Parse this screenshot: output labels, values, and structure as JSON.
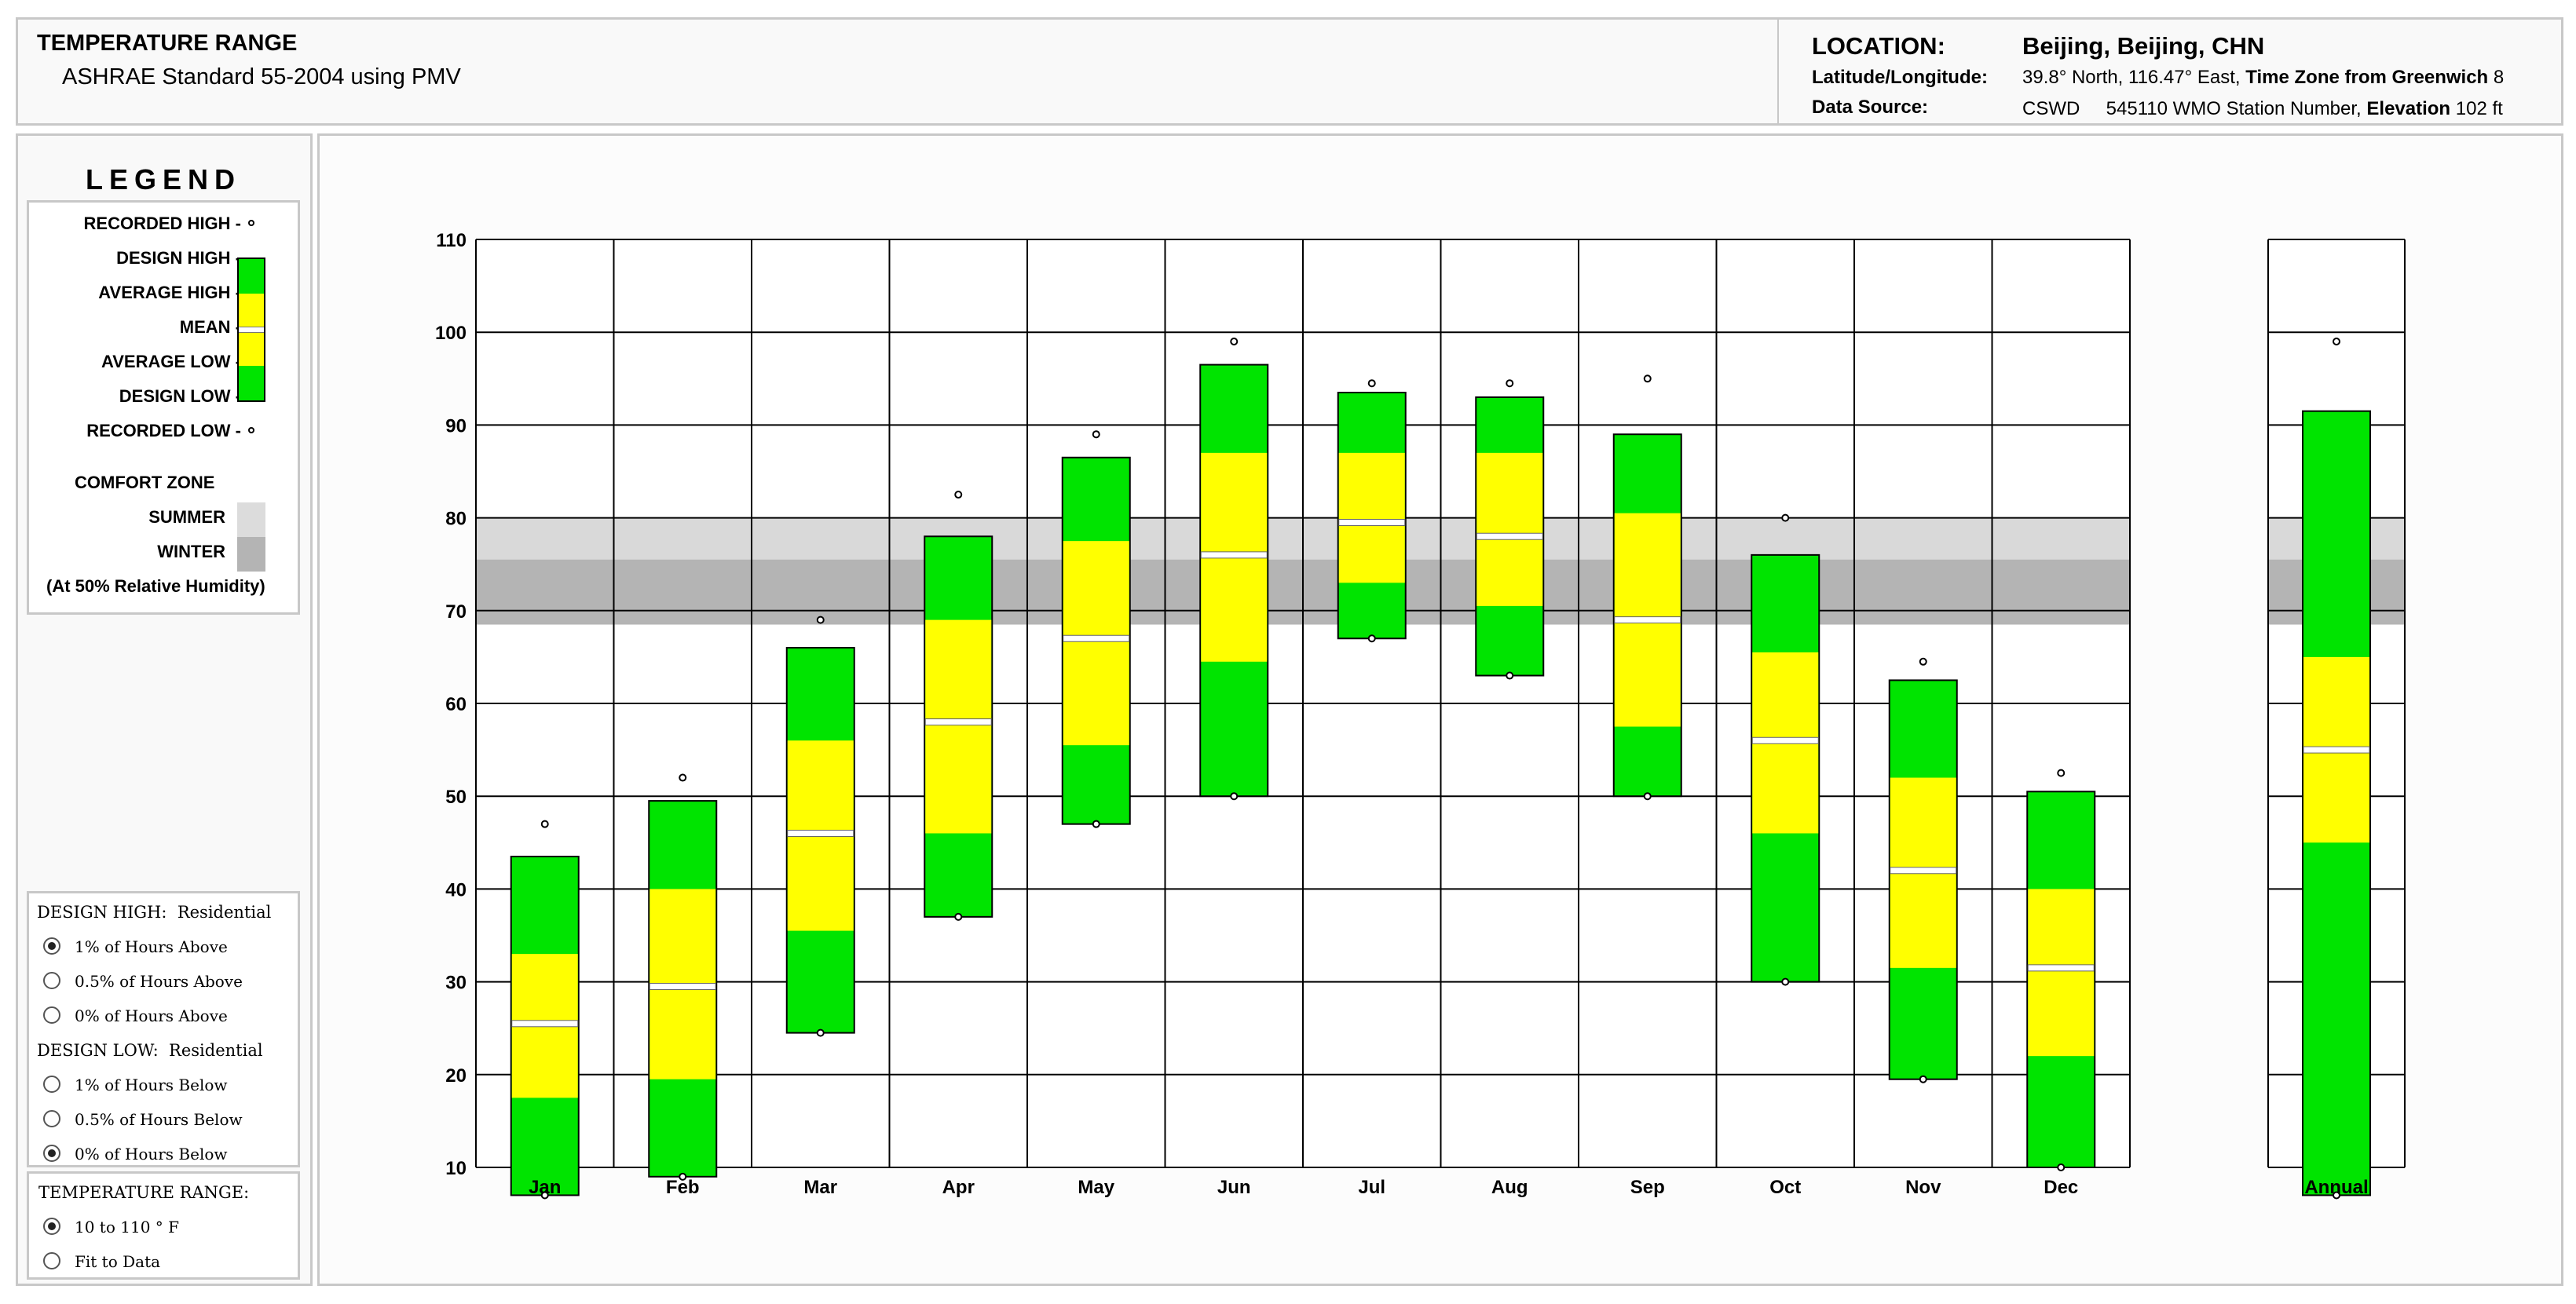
{
  "header": {
    "title": "TEMPERATURE RANGE",
    "subtitle": "ASHRAE Standard 55-2004 using PMV",
    "location_label": "LOCATION:",
    "location_value": "Beijing, Beijing, CHN",
    "latlon_label": "Latitude/Longitude:",
    "latlon_value": "39.8° North, 116.47° East,",
    "tz_label": "Time Zone from Greenwich",
    "tz_value": "8",
    "source_label": "Data Source:",
    "source_value": "CSWD",
    "station_value": "545110 WMO Station Number,",
    "elevation_label": "Elevation",
    "elevation_value": "102 ft"
  },
  "legend": {
    "title": "LEGEND",
    "recorded_high": "RECORDED HIGH -",
    "design_high": "DESIGN HIGH -",
    "average_high": "AVERAGE HIGH -",
    "mean": "MEAN -",
    "average_low": "AVERAGE LOW -",
    "design_low": "DESIGN LOW -",
    "recorded_low": "RECORDED LOW -",
    "comfort_zone": "COMFORT ZONE",
    "summer": "SUMMER",
    "winter": "WINTER",
    "humidity_note": "(At 50% Relative Humidity)"
  },
  "controls": {
    "design_high_label": "DESIGN HIGH:",
    "design_high_type": "Residential",
    "design_high_options": [
      "1% of Hours Above",
      "0.5% of Hours Above",
      "0% of Hours Above"
    ],
    "design_high_selected": 0,
    "design_low_label": "DESIGN LOW:",
    "design_low_type": "Residential",
    "design_low_options": [
      "1% of Hours Below",
      "0.5% of Hours Below",
      "0% of Hours Below"
    ],
    "design_low_selected": 2,
    "range_label": "TEMPERATURE RANGE:",
    "range_options": [
      "10 to 110 ° F",
      "Fit to Data"
    ],
    "range_selected": 0
  },
  "colors": {
    "design_band": "#00e400",
    "average_band": "#ffff00",
    "mean_line": "#ffffff",
    "summer_zone": "#d9d9d9",
    "winter_zone": "#b4b4b4",
    "grid": "#000000"
  },
  "chart_data": {
    "type": "range-bar",
    "ylim": [
      10,
      110
    ],
    "yticks": [
      10,
      20,
      30,
      40,
      50,
      60,
      70,
      80,
      90,
      100,
      110
    ],
    "comfort_zone": {
      "summer": [
        68.5,
        80
      ],
      "winter": [
        68.5,
        75.5
      ]
    },
    "categories": [
      "Jan",
      "Feb",
      "Mar",
      "Apr",
      "May",
      "Jun",
      "Jul",
      "Aug",
      "Sep",
      "Oct",
      "Nov",
      "Dec",
      "Annual"
    ],
    "recorded_high": [
      47,
      52,
      69,
      82.5,
      89,
      99,
      94.5,
      94.5,
      95,
      80,
      64.5,
      52.5,
      99
    ],
    "design_high": [
      43.5,
      49.5,
      66,
      78,
      86.5,
      96.5,
      93.5,
      93,
      89,
      76,
      62.5,
      50.5,
      91.5
    ],
    "average_high": [
      33,
      40,
      56,
      69,
      77.5,
      87,
      87,
      87,
      80.5,
      65.5,
      52,
      40,
      65
    ],
    "mean": [
      25.5,
      29.5,
      46,
      58,
      67,
      76,
      79.5,
      78,
      69,
      56,
      42,
      31.5,
      55
    ],
    "average_low": [
      17.5,
      19.5,
      35.5,
      46,
      55.5,
      64.5,
      73,
      70.5,
      57.5,
      46,
      31.5,
      22,
      45
    ],
    "design_low": [
      7,
      9,
      24.5,
      37,
      47,
      50,
      67,
      63,
      50,
      30,
      19.5,
      10,
      7
    ],
    "recorded_low": [
      7,
      9,
      24.5,
      37,
      47,
      50,
      67,
      63,
      50,
      30,
      19.5,
      10,
      7
    ]
  }
}
